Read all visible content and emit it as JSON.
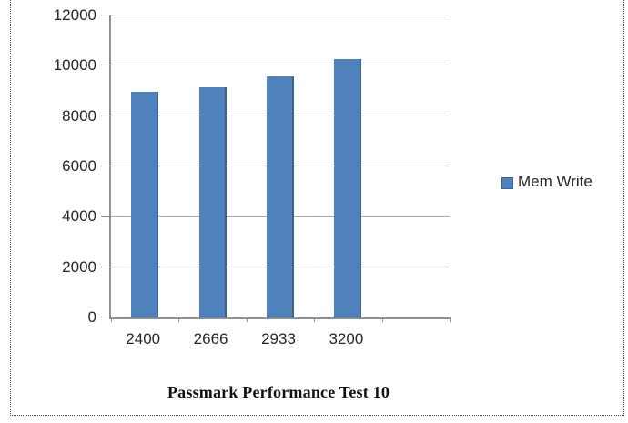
{
  "chart_data": {
    "type": "bar",
    "title": "Passmark Performance Test 10",
    "series_name": "Mem Write",
    "categories": [
      "2400",
      "2666",
      "2933",
      "3200"
    ],
    "values": [
      8950,
      9150,
      9580,
      10250
    ],
    "xlabel": "",
    "ylabel": "",
    "ylim": [
      0,
      12000
    ],
    "yticks": [
      0,
      2000,
      4000,
      6000,
      8000,
      10000,
      12000
    ],
    "num_slots": 5,
    "grid": true,
    "legend_position": "right",
    "bar_color": "#4f81bd",
    "bar_edge_color": "#3a648f",
    "gridline_color": "#a6a6a6",
    "axis_color": "#909090",
    "text_color": "#262626"
  }
}
